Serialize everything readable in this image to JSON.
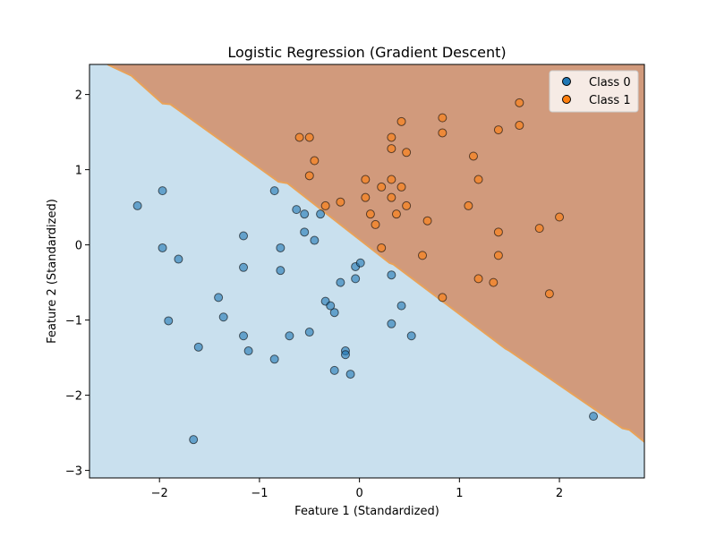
{
  "chart_data": {
    "type": "scatter",
    "title": "Logistic Regression (Gradient Descent)",
    "xlabel": "Feature 1 (Standardized)",
    "ylabel": "Feature 2 (Standardized)",
    "xlim": [
      -2.7,
      2.85
    ],
    "ylim": [
      -3.1,
      2.4
    ],
    "xticks": [
      -2,
      -1,
      0,
      1,
      2
    ],
    "yticks": [
      -3,
      -2,
      -1,
      0,
      1,
      2
    ],
    "xtick_labels": [
      "−2",
      "−1",
      "0",
      "1",
      "2"
    ],
    "ytick_labels": [
      "−3",
      "−2",
      "−1",
      "0",
      "1",
      "2"
    ],
    "grid": false,
    "legend_position": "top-right",
    "background": {
      "boundary": [
        [
          -2.52,
          2.4
        ],
        [
          -2.28,
          2.25
        ],
        [
          -1.97,
          1.88
        ],
        [
          -1.89,
          1.87
        ],
        [
          -0.81,
          0.84
        ],
        [
          -0.72,
          0.82
        ],
        [
          0.3,
          -0.24
        ],
        [
          0.34,
          -0.26
        ],
        [
          1.46,
          -1.38
        ],
        [
          1.5,
          -1.41
        ],
        [
          2.63,
          -2.44
        ],
        [
          2.7,
          -2.46
        ],
        [
          2.85,
          -2.62
        ]
      ],
      "region_class0_color": "#c9e0ee",
      "region_class1_color": "#d19a7c",
      "boundary_color": "#e8a25a"
    },
    "series": [
      {
        "name": "Class 0",
        "color": "#1f77b4",
        "points": [
          [
            -2.22,
            0.52
          ],
          [
            -1.97,
            0.72
          ],
          [
            -1.97,
            -0.04
          ],
          [
            -1.81,
            -0.19
          ],
          [
            -1.91,
            -1.01
          ],
          [
            -1.61,
            -1.36
          ],
          [
            -1.66,
            -2.59
          ],
          [
            -1.41,
            -0.7
          ],
          [
            -1.36,
            -0.96
          ],
          [
            -1.16,
            0.12
          ],
          [
            -1.16,
            -1.21
          ],
          [
            -1.11,
            -1.41
          ],
          [
            -0.85,
            -1.52
          ],
          [
            -0.79,
            -0.04
          ],
          [
            -0.7,
            -1.21
          ],
          [
            -0.55,
            0.41
          ],
          [
            -0.55,
            0.17
          ],
          [
            -0.5,
            -1.16
          ],
          [
            -0.45,
            0.06
          ],
          [
            -0.34,
            -0.75
          ],
          [
            -0.25,
            -0.9
          ],
          [
            -0.25,
            -1.67
          ],
          [
            -0.19,
            -0.5
          ],
          [
            -0.14,
            -1.41
          ],
          [
            -0.14,
            -1.46
          ],
          [
            -0.09,
            -1.72
          ],
          [
            -0.04,
            -0.29
          ],
          [
            -0.04,
            -0.45
          ],
          [
            0.01,
            -0.24
          ],
          [
            0.32,
            -0.4
          ],
          [
            0.32,
            -1.05
          ],
          [
            0.52,
            -1.21
          ],
          [
            -0.39,
            0.41
          ],
          [
            -0.63,
            0.47
          ],
          [
            -0.85,
            0.72
          ],
          [
            -1.16,
            -0.3
          ],
          [
            -0.79,
            -0.34
          ],
          [
            -0.29,
            -0.81
          ],
          [
            0.42,
            -0.81
          ],
          [
            2.34,
            -2.28
          ]
        ]
      },
      {
        "name": "Class 1",
        "color": "#ff7f0e",
        "points": [
          [
            -0.6,
            1.43
          ],
          [
            -0.5,
            1.43
          ],
          [
            -0.45,
            1.12
          ],
          [
            -0.5,
            0.92
          ],
          [
            -0.34,
            0.52
          ],
          [
            -0.19,
            0.57
          ],
          [
            0.06,
            0.87
          ],
          [
            0.06,
            0.63
          ],
          [
            0.11,
            0.41
          ],
          [
            0.16,
            0.27
          ],
          [
            0.22,
            0.77
          ],
          [
            0.22,
            -0.04
          ],
          [
            0.32,
            1.43
          ],
          [
            0.32,
            1.28
          ],
          [
            0.32,
            0.87
          ],
          [
            0.32,
            0.63
          ],
          [
            0.37,
            0.41
          ],
          [
            0.42,
            1.64
          ],
          [
            0.42,
            0.77
          ],
          [
            0.47,
            1.23
          ],
          [
            0.47,
            0.52
          ],
          [
            0.63,
            -0.14
          ],
          [
            0.68,
            0.32
          ],
          [
            0.83,
            1.69
          ],
          [
            0.83,
            1.49
          ],
          [
            0.83,
            -0.7
          ],
          [
            1.09,
            0.52
          ],
          [
            1.14,
            1.18
          ],
          [
            1.19,
            0.87
          ],
          [
            1.19,
            -0.45
          ],
          [
            1.34,
            -0.5
          ],
          [
            1.39,
            1.53
          ],
          [
            1.39,
            0.17
          ],
          [
            1.39,
            -0.14
          ],
          [
            1.6,
            1.89
          ],
          [
            1.6,
            1.59
          ],
          [
            1.8,
            0.22
          ],
          [
            1.9,
            -0.65
          ],
          [
            2.0,
            0.37
          ]
        ]
      }
    ]
  }
}
